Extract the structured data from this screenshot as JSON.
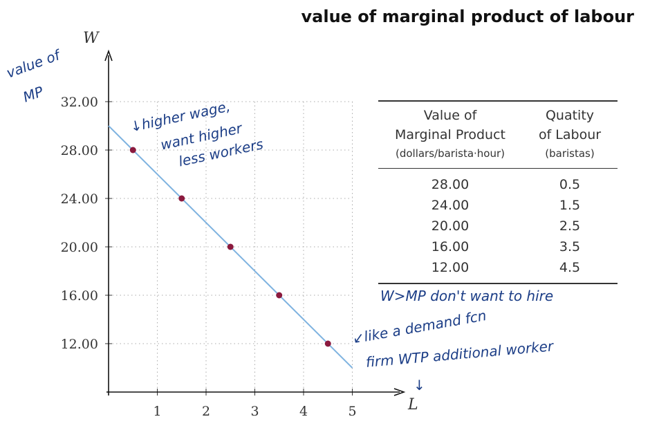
{
  "title": "value of marginal product of labour",
  "chart_data": {
    "type": "line",
    "xlabel": "L",
    "ylabel": "W",
    "xlim": [
      0,
      5
    ],
    "ylim": [
      8,
      32
    ],
    "x_ticks": [
      "1",
      "2",
      "3",
      "4",
      "5"
    ],
    "y_ticks": [
      "12.00",
      "16.00",
      "20.00",
      "24.00",
      "28.00",
      "32.00"
    ],
    "grid": true,
    "line": {
      "x": [
        0,
        5
      ],
      "y": [
        30,
        10
      ],
      "color": "#7fb3e0"
    },
    "points": {
      "x": [
        0.5,
        1.5,
        2.5,
        3.5,
        4.5
      ],
      "y": [
        28,
        24,
        20,
        16,
        12
      ],
      "color": "#8b1a3e"
    }
  },
  "table": {
    "headers": [
      {
        "line1": "Value of",
        "line2": "Marginal Product",
        "unit": "(dollars/barista·hour)"
      },
      {
        "line1": "Quatity",
        "line2": "of Labour",
        "unit": "(baristas)"
      }
    ],
    "rows": [
      [
        "28.00",
        "0.5"
      ],
      [
        "24.00",
        "1.5"
      ],
      [
        "20.00",
        "2.5"
      ],
      [
        "16.00",
        "3.5"
      ],
      [
        "12.00",
        "4.5"
      ]
    ]
  },
  "annotations": {
    "value_of_mp": [
      "value of",
      "MP"
    ],
    "higher_wage": [
      "↓higher wage,",
      "want higher",
      "less workers"
    ],
    "w_gt_mp": "W>MP don't want to hire",
    "like_demand": [
      "↙like a demand fcn",
      "firm WTP additional worker",
      "↓"
    ]
  }
}
